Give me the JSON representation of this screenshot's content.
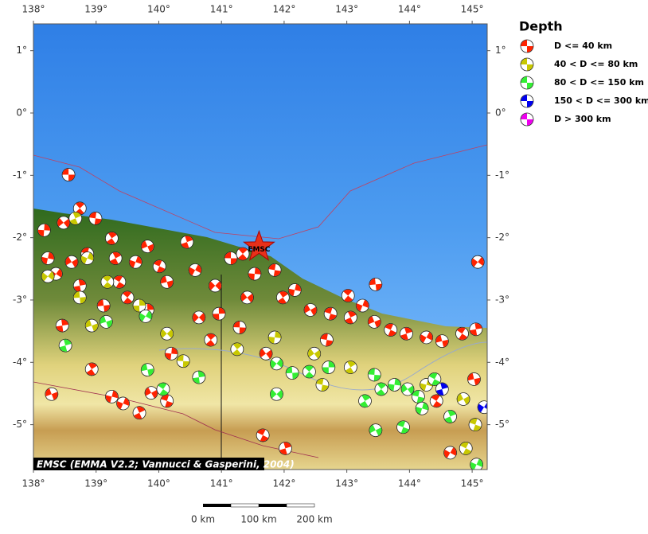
{
  "map": {
    "lon_ticks": [
      {
        "value": 138,
        "label": "138°"
      },
      {
        "value": 139,
        "label": "139°"
      },
      {
        "value": 140,
        "label": "140°"
      },
      {
        "value": 141,
        "label": "141°"
      },
      {
        "value": 142,
        "label": "142°"
      },
      {
        "value": 143,
        "label": "143°"
      },
      {
        "value": 144,
        "label": "144°"
      },
      {
        "value": 145,
        "label": "145°"
      }
    ],
    "lat_ticks": [
      {
        "value": 1,
        "label": "1°"
      },
      {
        "value": 0,
        "label": "0°"
      },
      {
        "value": -1,
        "label": "-1°"
      },
      {
        "value": -2,
        "label": "-2°"
      },
      {
        "value": -3,
        "label": "-3°"
      },
      {
        "value": -4,
        "label": "-4°"
      },
      {
        "value": -5,
        "label": "-5°"
      }
    ],
    "lonlim": [
      138,
      145.24
    ],
    "latlim": [
      -5.72,
      1.43
    ],
    "epicenter": {
      "label": "EMSC",
      "lon": 141.6,
      "lat": -2.15
    },
    "credit": "EMSC (EMMA V2.2; Vannucci & Gasperini, 2004)",
    "scale_labels": [
      "0 km",
      "100 km",
      "200 km"
    ],
    "legend": {
      "title": "Depth",
      "entries": [
        {
          "label": "D <= 40 km",
          "color": "#ff2200"
        },
        {
          "label": "40 < D <= 80 km",
          "color": "#c8c800"
        },
        {
          "label": "80 < D <= 150 km",
          "color": "#33ee33"
        },
        {
          "label": "150 < D <= 300 km",
          "color": "#0000ee"
        },
        {
          "label": "D > 300 km",
          "color": "#ee00ee"
        }
      ]
    },
    "events": [
      [
        138.56,
        -0.99,
        0
      ],
      [
        138.74,
        -1.53,
        0
      ],
      [
        138.17,
        -1.88,
        0
      ],
      [
        138.48,
        -1.76,
        0
      ],
      [
        138.99,
        -1.69,
        0
      ],
      [
        139.25,
        -2.01,
        0
      ],
      [
        138.23,
        -2.33,
        0
      ],
      [
        138.61,
        -2.39,
        0
      ],
      [
        138.86,
        -2.26,
        0
      ],
      [
        139.31,
        -2.33,
        0
      ],
      [
        139.63,
        -2.39,
        0
      ],
      [
        139.82,
        -2.14,
        0
      ],
      [
        140.01,
        -2.46,
        0
      ],
      [
        140.45,
        -2.07,
        0
      ],
      [
        140.58,
        -2.52,
        0
      ],
      [
        140.13,
        -2.71,
        0
      ],
      [
        139.37,
        -2.71,
        0
      ],
      [
        138.74,
        -2.77,
        0
      ],
      [
        138.36,
        -2.58,
        0
      ],
      [
        139.12,
        -3.09,
        0
      ],
      [
        139.5,
        -2.96,
        0
      ],
      [
        139.82,
        -3.16,
        0
      ],
      [
        140.9,
        -2.77,
        0
      ],
      [
        141.15,
        -2.33,
        0
      ],
      [
        141.34,
        -2.26,
        0
      ],
      [
        141.53,
        -2.58,
        0
      ],
      [
        141.41,
        -2.96,
        0
      ],
      [
        141.85,
        -2.52,
        0
      ],
      [
        141.98,
        -2.96,
        0
      ],
      [
        142.17,
        -2.84,
        0
      ],
      [
        142.42,
        -3.16,
        0
      ],
      [
        142.74,
        -3.22,
        0
      ],
      [
        143.06,
        -3.28,
        0
      ],
      [
        143.25,
        -3.09,
        0
      ],
      [
        143.44,
        -3.35,
        0
      ],
      [
        143.7,
        -3.48,
        0
      ],
      [
        143.95,
        -3.54,
        0
      ],
      [
        144.27,
        -3.6,
        0
      ],
      [
        144.52,
        -3.66,
        0
      ],
      [
        144.84,
        -3.54,
        0
      ],
      [
        145.06,
        -3.47,
        0
      ],
      [
        145.09,
        -2.39,
        0
      ],
      [
        143.46,
        -2.75,
        0
      ],
      [
        143.02,
        -2.93,
        0
      ],
      [
        140.96,
        -3.22,
        0
      ],
      [
        140.64,
        -3.28,
        0
      ],
      [
        141.29,
        -3.44,
        0
      ],
      [
        140.83,
        -3.64,
        0
      ],
      [
        140.2,
        -3.86,
        0
      ],
      [
        141.71,
        -3.86,
        0
      ],
      [
        142.68,
        -3.64,
        0
      ],
      [
        138.93,
        -4.11,
        0
      ],
      [
        139.25,
        -4.55,
        0
      ],
      [
        139.88,
        -4.49,
        0
      ],
      [
        140.13,
        -4.62,
        0
      ],
      [
        139.69,
        -4.81,
        0
      ],
      [
        139.43,
        -4.66,
        0
      ],
      [
        138.29,
        -4.51,
        0
      ],
      [
        141.66,
        -5.17,
        0
      ],
      [
        142.02,
        -5.38,
        0
      ],
      [
        144.65,
        -5.45,
        0
      ],
      [
        145.03,
        -4.27,
        0
      ],
      [
        144.43,
        -4.62,
        0
      ],
      [
        138.46,
        -3.41,
        0
      ],
      [
        138.23,
        -2.62,
        1
      ],
      [
        138.74,
        -2.96,
        1
      ],
      [
        139.18,
        -2.71,
        1
      ],
      [
        139.69,
        -3.09,
        1
      ],
      [
        140.13,
        -3.54,
        1
      ],
      [
        140.39,
        -3.98,
        1
      ],
      [
        141.25,
        -3.79,
        1
      ],
      [
        141.85,
        -3.6,
        1
      ],
      [
        142.48,
        -3.86,
        1
      ],
      [
        142.61,
        -4.36,
        1
      ],
      [
        143.06,
        -4.08,
        1
      ],
      [
        144.27,
        -4.36,
        1
      ],
      [
        144.86,
        -4.59,
        1
      ],
      [
        145.05,
        -5,
        1
      ],
      [
        138.67,
        -1.69,
        1
      ],
      [
        138.86,
        -2.33,
        1
      ],
      [
        138.93,
        -3.41,
        1
      ],
      [
        144.9,
        -5.38,
        1
      ],
      [
        138.51,
        -3.73,
        2
      ],
      [
        139.79,
        -3.26,
        2
      ],
      [
        139.82,
        -4.12,
        2
      ],
      [
        140.07,
        -4.43,
        2
      ],
      [
        140.64,
        -4.24,
        2
      ],
      [
        141.88,
        -4.02,
        2
      ],
      [
        142.13,
        -4.17,
        2
      ],
      [
        142.4,
        -4.15,
        2
      ],
      [
        142.71,
        -4.08,
        2
      ],
      [
        141.88,
        -4.51,
        2
      ],
      [
        143.44,
        -4.2,
        2
      ],
      [
        143.55,
        -4.43,
        2
      ],
      [
        143.76,
        -4.36,
        2
      ],
      [
        143.97,
        -4.43,
        2
      ],
      [
        144.14,
        -4.55,
        2
      ],
      [
        143.29,
        -4.62,
        2
      ],
      [
        144.2,
        -4.74,
        2
      ],
      [
        143.46,
        -5.09,
        2
      ],
      [
        143.9,
        -5.04,
        2
      ],
      [
        144.65,
        -4.87,
        2
      ],
      [
        145.07,
        -5.64,
        2
      ],
      [
        139.16,
        -3.35,
        2
      ],
      [
        144.4,
        -4.27,
        2
      ],
      [
        144.52,
        -4.43,
        3
      ],
      [
        145.19,
        -4.72,
        3
      ]
    ]
  }
}
